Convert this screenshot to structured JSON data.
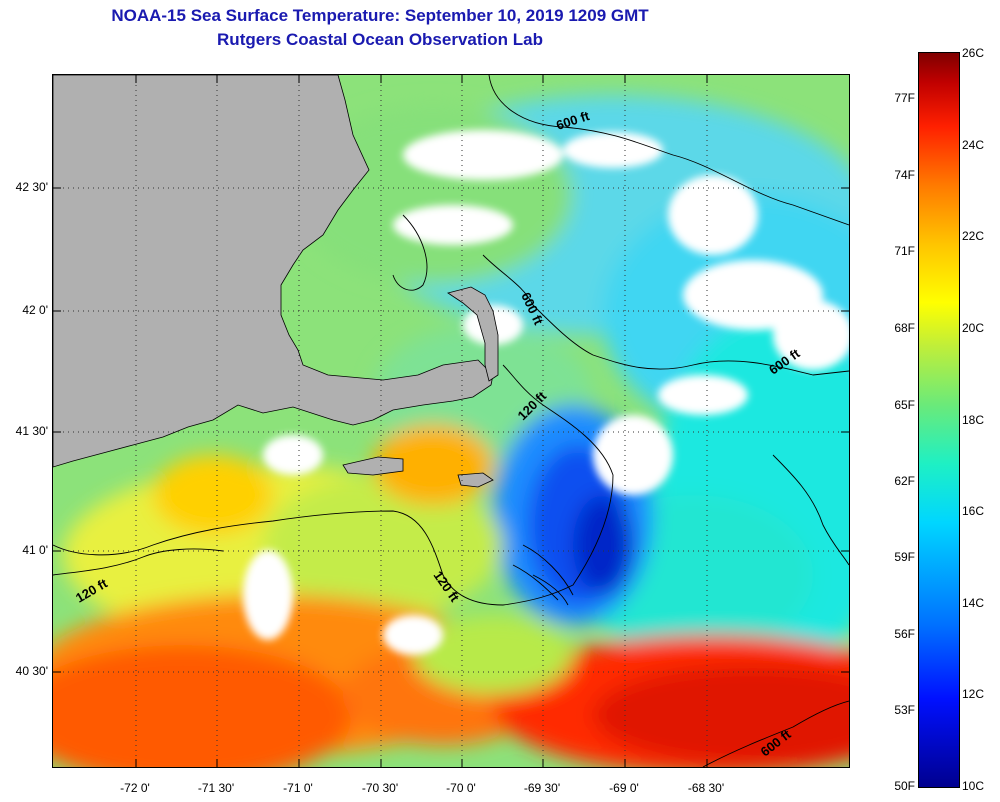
{
  "title_line1": "NOAA-15 Sea Surface Temperature:  September 10, 2019 1209 GMT",
  "title_line2": "Rutgers Coastal Ocean Observation Lab",
  "latitude_labels": [
    "42 30'",
    "42 0'",
    "41 30'",
    "41 0'",
    "40 30'"
  ],
  "longitude_labels": [
    "-72 0'",
    "-71 30'",
    "-71 0'",
    "-70 30'",
    "-70 0'",
    "-69 30'",
    "-69 0'",
    "-68 30'"
  ],
  "colorbar": {
    "fahrenheit_labels": [
      "77F",
      "74F",
      "71F",
      "68F",
      "65F",
      "62F",
      "59F",
      "56F",
      "53F",
      "50F"
    ],
    "celsius_labels": [
      "26C",
      "24C",
      "22C",
      "20C",
      "18C",
      "16C",
      "14C",
      "12C",
      "10C"
    ]
  },
  "contour_labels": [
    "600 ft",
    "600 ft",
    "600 ft",
    "120 ft",
    "120 ft",
    "120 ft",
    "600 ft"
  ],
  "colors": {
    "land": "#b0b0b0",
    "cloud": "#ffffff",
    "title": "#1a1ab0"
  }
}
